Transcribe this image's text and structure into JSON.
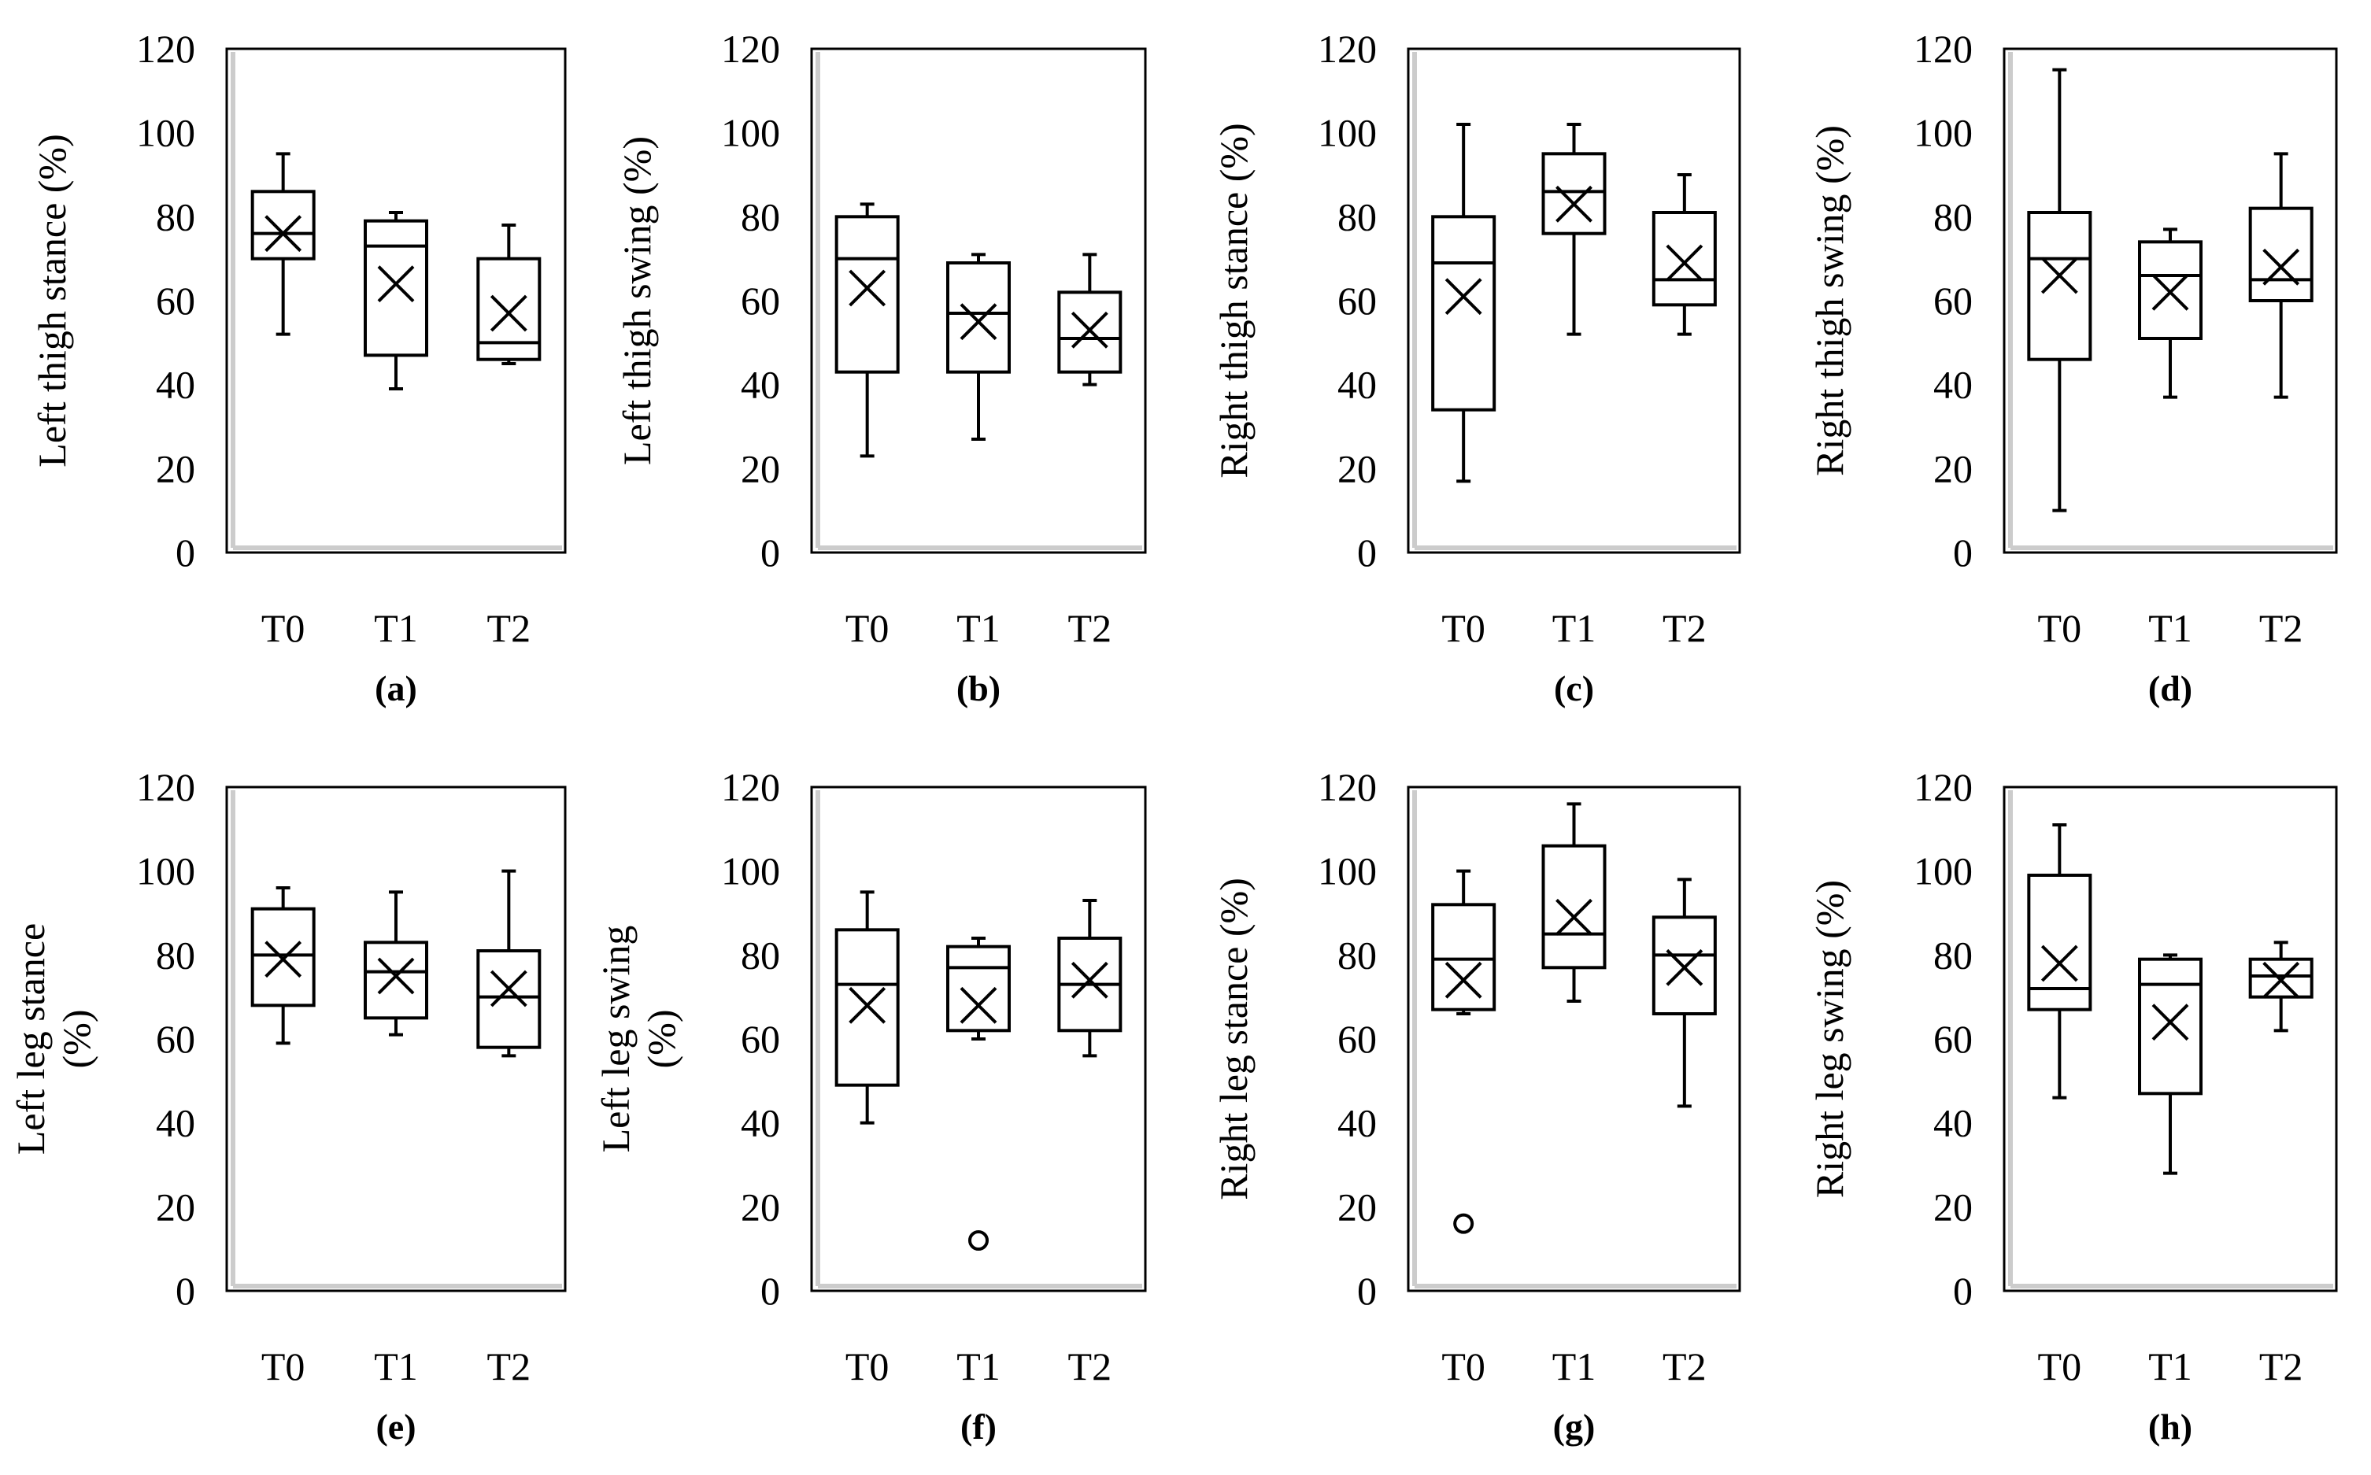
{
  "chart_data": [
    {
      "panel": "(a)",
      "type": "box",
      "ylabel": "Left thigh stance (%)",
      "categories": [
        "T0",
        "T1",
        "T2"
      ],
      "ylim": [
        0,
        120
      ],
      "yticks": [
        "0",
        "20",
        "40",
        "60",
        "80",
        "100",
        "120"
      ],
      "boxes": [
        {
          "min": 52,
          "q1": 70,
          "median": 76,
          "q3": 86,
          "max": 95,
          "mean": 76
        },
        {
          "min": 39,
          "q1": 47,
          "median": 73,
          "q3": 79,
          "max": 81,
          "mean": 64
        },
        {
          "min": 45,
          "q1": 46,
          "median": 50,
          "q3": 70,
          "max": 78,
          "mean": 57
        }
      ]
    },
    {
      "panel": "(b)",
      "type": "box",
      "ylabel": "Left thigh swing (%)",
      "categories": [
        "T0",
        "T1",
        "T2"
      ],
      "ylim": [
        0,
        120
      ],
      "yticks": [
        "0",
        "20",
        "40",
        "60",
        "80",
        "100",
        "120"
      ],
      "boxes": [
        {
          "min": 23,
          "q1": 43,
          "median": 70,
          "q3": 80,
          "max": 83,
          "mean": 63
        },
        {
          "min": 27,
          "q1": 43,
          "median": 57,
          "q3": 69,
          "max": 71,
          "mean": 55
        },
        {
          "min": 40,
          "q1": 43,
          "median": 51,
          "q3": 62,
          "max": 71,
          "mean": 53
        }
      ]
    },
    {
      "panel": "(c)",
      "type": "box",
      "ylabel": "Right thigh stance (%)",
      "categories": [
        "T0",
        "T1",
        "T2"
      ],
      "ylim": [
        0,
        120
      ],
      "yticks": [
        "0",
        "20",
        "40",
        "60",
        "80",
        "100",
        "120"
      ],
      "boxes": [
        {
          "min": 17,
          "q1": 34,
          "median": 69,
          "q3": 80,
          "max": 102,
          "mean": 61
        },
        {
          "min": 52,
          "q1": 76,
          "median": 86,
          "q3": 95,
          "max": 102,
          "mean": 83
        },
        {
          "min": 52,
          "q1": 59,
          "median": 65,
          "q3": 81,
          "max": 90,
          "mean": 69
        }
      ]
    },
    {
      "panel": "(d)",
      "type": "box",
      "ylabel": "Right thigh swing (%)",
      "categories": [
        "T0",
        "T1",
        "T2"
      ],
      "ylim": [
        0,
        120
      ],
      "yticks": [
        "0",
        "20",
        "40",
        "60",
        "80",
        "100",
        "120"
      ],
      "boxes": [
        {
          "min": 10,
          "q1": 46,
          "median": 70,
          "q3": 81,
          "max": 115,
          "mean": 66
        },
        {
          "min": 37,
          "q1": 51,
          "median": 66,
          "q3": 74,
          "max": 77,
          "mean": 62
        },
        {
          "min": 37,
          "q1": 60,
          "median": 65,
          "q3": 82,
          "max": 95,
          "mean": 68
        }
      ]
    },
    {
      "panel": "(e)",
      "type": "box",
      "ylabel": "Left leg stance (%)",
      "categories": [
        "T0",
        "T1",
        "T2"
      ],
      "ylim": [
        0,
        120
      ],
      "yticks": [
        "0",
        "20",
        "40",
        "60",
        "80",
        "100",
        "120"
      ],
      "boxes": [
        {
          "min": 59,
          "q1": 68,
          "median": 80,
          "q3": 91,
          "max": 96,
          "mean": 79
        },
        {
          "min": 61,
          "q1": 65,
          "median": 76,
          "q3": 83,
          "max": 95,
          "mean": 75
        },
        {
          "min": 56,
          "q1": 58,
          "median": 70,
          "q3": 81,
          "max": 100,
          "mean": 72
        }
      ]
    },
    {
      "panel": "(f)",
      "type": "box",
      "ylabel": "Left leg swing (%)",
      "categories": [
        "T0",
        "T1",
        "T2"
      ],
      "ylim": [
        0,
        120
      ],
      "yticks": [
        "0",
        "20",
        "40",
        "60",
        "80",
        "100",
        "120"
      ],
      "boxes": [
        {
          "min": 40,
          "q1": 49,
          "median": 73,
          "q3": 86,
          "max": 95,
          "mean": 68
        },
        {
          "min": 60,
          "q1": 62,
          "median": 77,
          "q3": 82,
          "max": 84,
          "mean": 68,
          "outliers": [
            12
          ]
        },
        {
          "min": 56,
          "q1": 62,
          "median": 73,
          "q3": 84,
          "max": 93,
          "mean": 74
        }
      ]
    },
    {
      "panel": "(g)",
      "type": "box",
      "ylabel": "Right leg stance (%)",
      "categories": [
        "T0",
        "T1",
        "T2"
      ],
      "ylim": [
        0,
        120
      ],
      "yticks": [
        "0",
        "20",
        "40",
        "60",
        "80",
        "100",
        "120"
      ],
      "boxes": [
        {
          "min": 66,
          "q1": 67,
          "median": 79,
          "q3": 92,
          "max": 100,
          "mean": 74,
          "outliers": [
            16
          ]
        },
        {
          "min": 69,
          "q1": 77,
          "median": 85,
          "q3": 106,
          "max": 116,
          "mean": 89
        },
        {
          "min": 44,
          "q1": 66,
          "median": 80,
          "q3": 89,
          "max": 98,
          "mean": 77
        }
      ]
    },
    {
      "panel": "(h)",
      "type": "box",
      "ylabel": "Right leg swing (%)",
      "categories": [
        "T0",
        "T1",
        "T2"
      ],
      "ylim": [
        0,
        120
      ],
      "yticks": [
        "0",
        "20",
        "40",
        "60",
        "80",
        "100",
        "120"
      ],
      "boxes": [
        {
          "min": 46,
          "q1": 67,
          "median": 72,
          "q3": 99,
          "max": 111,
          "mean": 78
        },
        {
          "min": 28,
          "q1": 47,
          "median": 73,
          "q3": 79,
          "max": 80,
          "mean": 64
        },
        {
          "min": 62,
          "q1": 70,
          "median": 75,
          "q3": 79,
          "max": 83,
          "mean": 74
        }
      ]
    }
  ]
}
